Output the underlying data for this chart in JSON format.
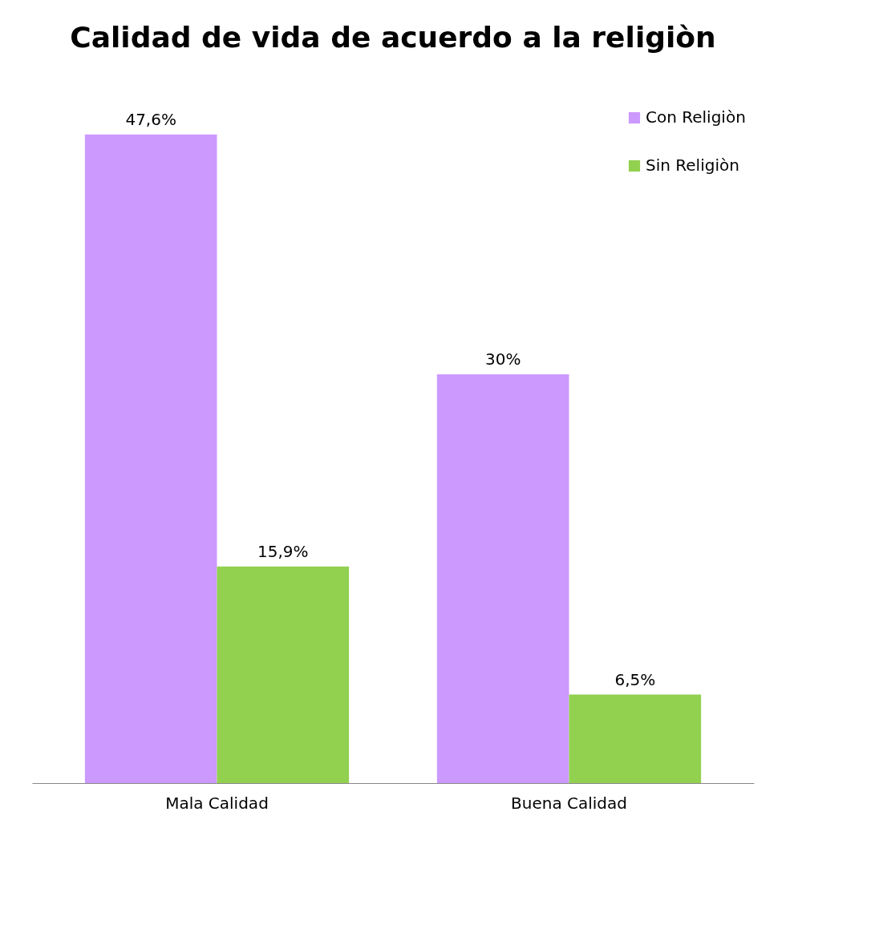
{
  "chart_data": {
    "type": "bar",
    "title": "Calidad de vida de acuerdo a la religiòn",
    "categories": [
      "Mala Calidad",
      "Buena Calidad"
    ],
    "series": [
      {
        "name": "Con Religiòn",
        "color": "#cc99ff",
        "values": [
          47.6,
          30
        ],
        "value_labels": [
          "47,6%",
          "30%"
        ]
      },
      {
        "name": "Sin Religiòn",
        "color": "#92d050",
        "values": [
          15.9,
          6.5
        ],
        "value_labels": [
          "15,9%",
          "6,5%"
        ]
      }
    ],
    "legend": "top right",
    "grid": false
  }
}
